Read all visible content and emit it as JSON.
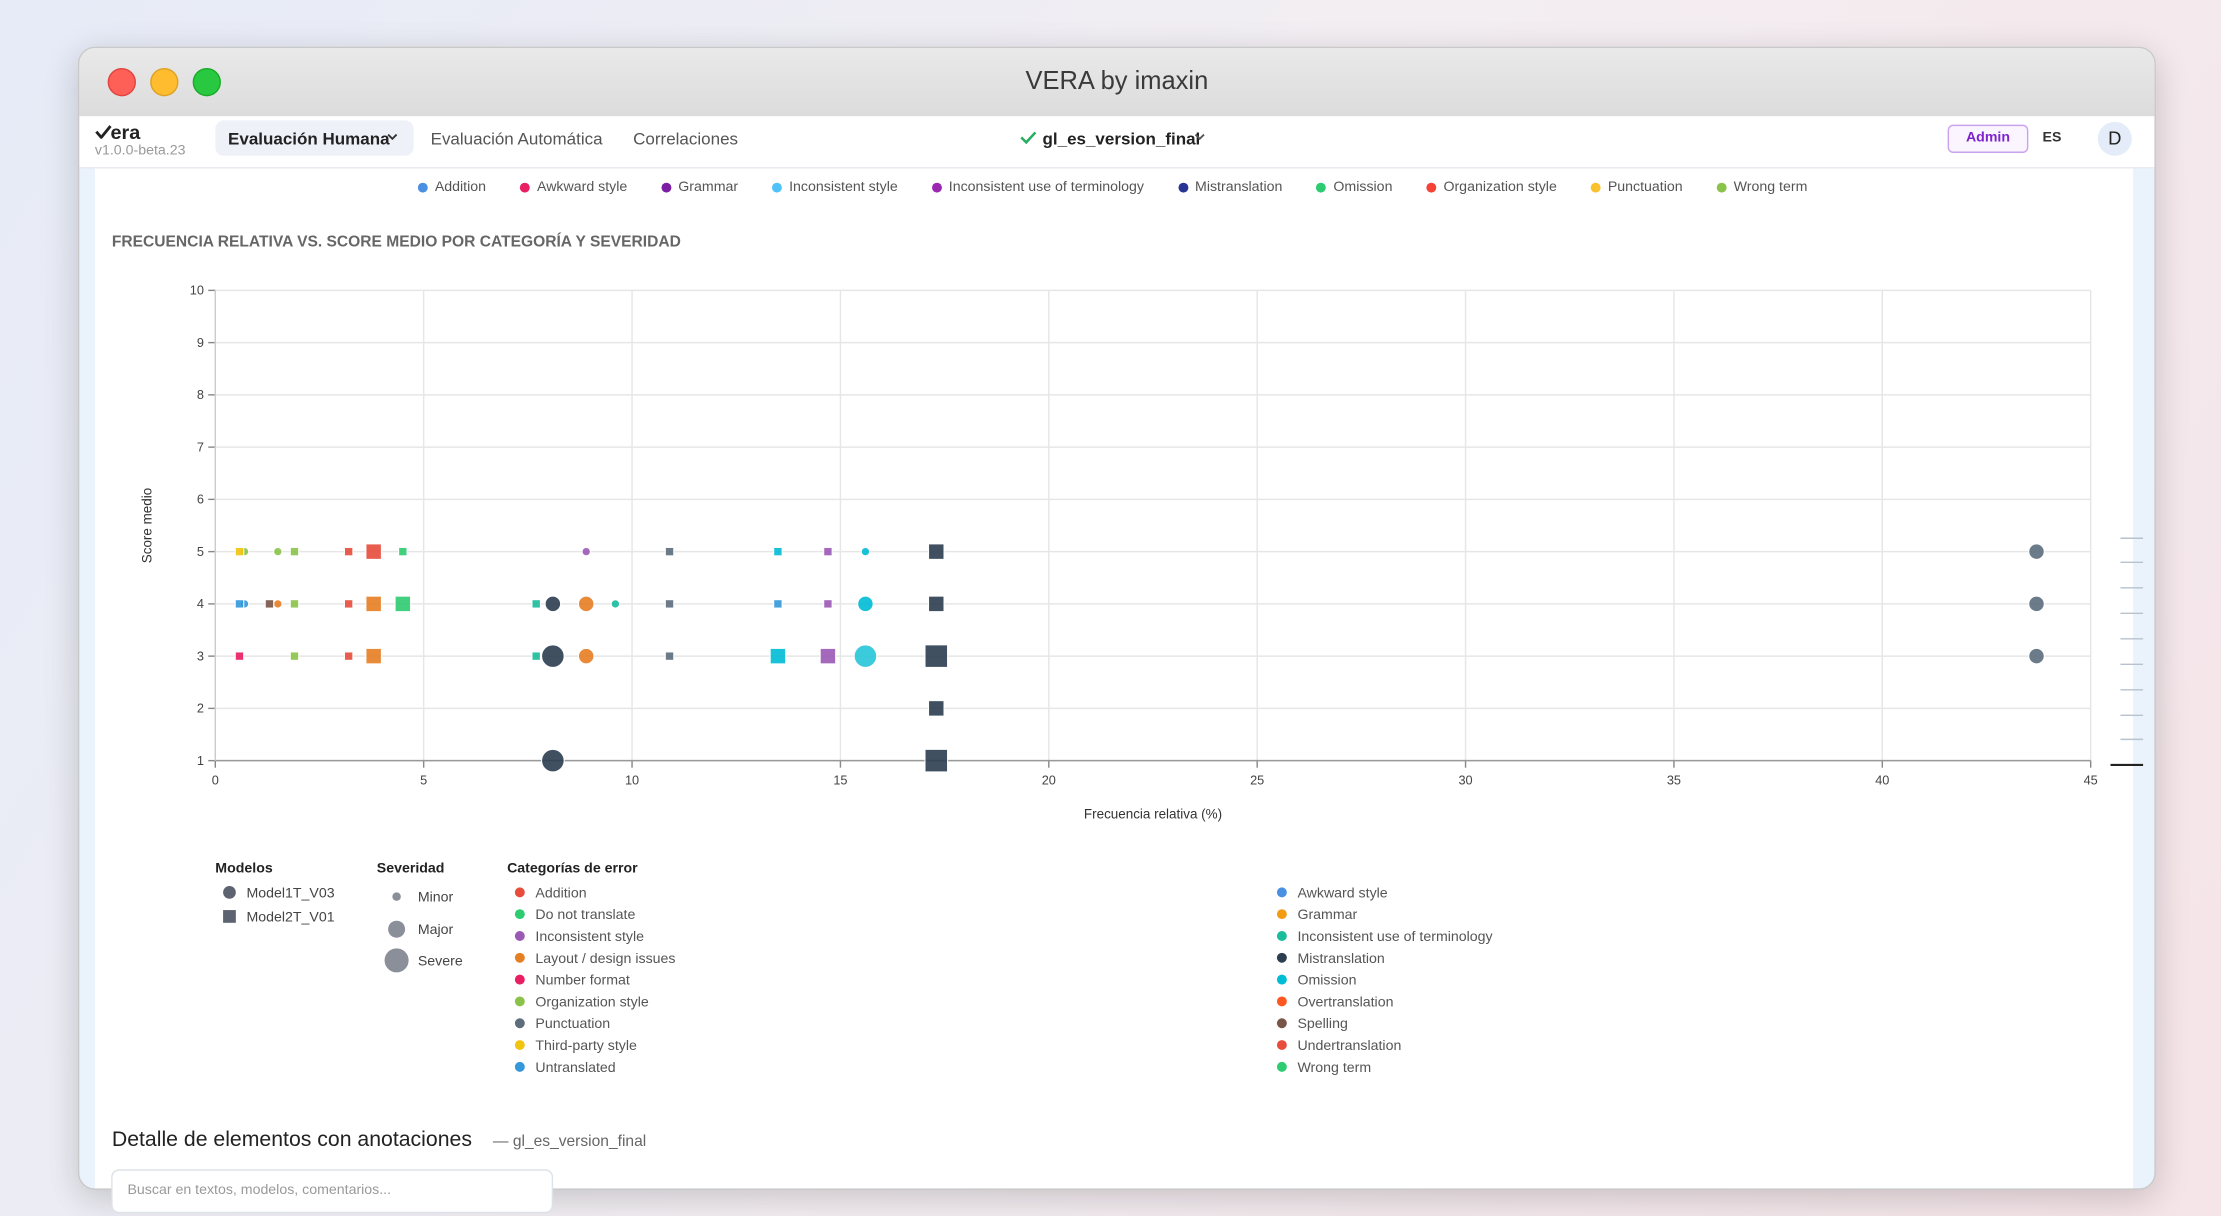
{
  "window": {
    "title": "VERA by imaxin"
  },
  "nav": {
    "logo": "era",
    "version": "v1.0.0-beta.23",
    "tabs": [
      "Evaluación Humana",
      "Evaluación Automática",
      "Correlaciones"
    ],
    "dataset": "gl_es_version_final",
    "role": "Admin",
    "lang": "ES",
    "avatar": "D"
  },
  "top_legend": [
    {
      "name": "Addition",
      "color": "#4a90e2"
    },
    {
      "name": "Awkward style",
      "color": "#e91e63"
    },
    {
      "name": "Grammar",
      "color": "#7b1fa2"
    },
    {
      "name": "Inconsistent style",
      "color": "#4fc3f7"
    },
    {
      "name": "Inconsistent use of terminology",
      "color": "#9c27b0"
    },
    {
      "name": "Mistranslation",
      "color": "#283593"
    },
    {
      "name": "Omission",
      "color": "#2ecc71"
    },
    {
      "name": "Organization style",
      "color": "#f44336"
    },
    {
      "name": "Punctuation",
      "color": "#fbc02d"
    },
    {
      "name": "Wrong term",
      "color": "#8bc34a"
    }
  ],
  "chart_data": {
    "type": "scatter",
    "title": "FRECUENCIA RELATIVA VS. SCORE MEDIO POR CATEGORÍA Y SEVERIDAD",
    "x_label": "Frecuencia relativa (%)",
    "y_label": "Score medio",
    "xlim": [
      0,
      45
    ],
    "ylim": [
      1,
      10
    ],
    "xticks": [
      0,
      5,
      10,
      15,
      20,
      25,
      30,
      35,
      40,
      45
    ],
    "yticks": [
      1,
      2,
      3,
      4,
      5,
      6,
      7,
      8,
      9,
      10
    ],
    "grid": true,
    "series": [
      {
        "name": "Model1T_V03",
        "marker": "circle",
        "x": [
          0.7,
          1.5,
          8.9,
          15.6,
          43.7,
          0.7,
          1.5,
          8.1,
          8.9,
          9.6,
          15.6,
          43.7,
          8.1,
          8.9,
          15.6,
          43.7,
          8.1
        ],
        "y": [
          5,
          5,
          5,
          5,
          5,
          4,
          4,
          4,
          4,
          4,
          4,
          4,
          3,
          3,
          3,
          3,
          1
        ],
        "severity": [
          "Minor",
          "Minor",
          "Minor",
          "Minor",
          "Major",
          "Minor",
          "Minor",
          "Major",
          "Major",
          "Minor",
          "Major",
          "Major",
          "Severe",
          "Major",
          "Severe",
          "Major",
          "Severe"
        ],
        "colors": [
          "#8bc34a",
          "#8bc34a",
          "#9b59b6",
          "#00bcd4",
          "#5d6d7e",
          "#3498db",
          "#e67e22",
          "#2c3e50",
          "#e67e22",
          "#1abc9c",
          "#00bcd4",
          "#5d6d7e",
          "#2c3e50",
          "#e67e22",
          "#26c6da",
          "#5d6d7e",
          "#2c3e50"
        ]
      },
      {
        "name": "Model2T_V01",
        "marker": "square",
        "x": [
          0.58,
          1.9,
          3.2,
          3.8,
          4.5,
          10.9,
          13.5,
          14.7,
          17.3,
          0.58,
          1.3,
          1.9,
          3.2,
          3.8,
          4.5,
          7.7,
          10.9,
          13.5,
          14.7,
          17.3,
          0.58,
          1.9,
          3.2,
          3.8,
          7.7,
          10.9,
          13.5,
          14.7,
          17.3,
          17.3,
          17.3
        ],
        "y": [
          5,
          5,
          5,
          5,
          5,
          5,
          5,
          5,
          5,
          4,
          4,
          4,
          4,
          4,
          4,
          4,
          4,
          4,
          4,
          4,
          3,
          3,
          3,
          3,
          3,
          3,
          3,
          3,
          3,
          2,
          1
        ],
        "severity": [
          "Minor",
          "Minor",
          "Minor",
          "Major",
          "Minor",
          "Minor",
          "Minor",
          "Minor",
          "Major",
          "Minor",
          "Minor",
          "Minor",
          "Minor",
          "Major",
          "Major",
          "Minor",
          "Minor",
          "Minor",
          "Minor",
          "Major",
          "Minor",
          "Minor",
          "Minor",
          "Major",
          "Minor",
          "Minor",
          "Major",
          "Major",
          "Severe",
          "Major",
          "Severe"
        ],
        "colors": [
          "#f1c40f",
          "#8bc34a",
          "#e74c3c",
          "#e74c3c",
          "#2ecc71",
          "#5d6d7e",
          "#00bcd4",
          "#9b59b6",
          "#2c3e50",
          "#3498db",
          "#795548",
          "#8bc34a",
          "#e74c3c",
          "#e67e22",
          "#2ecc71",
          "#1abc9c",
          "#5d6d7e",
          "#3498db",
          "#9b59b6",
          "#2c3e50",
          "#e91e63",
          "#8bc34a",
          "#e74c3c",
          "#e67e22",
          "#1abc9c",
          "#5d6d7e",
          "#00bcd4",
          "#9b59b6",
          "#2c3e50",
          "#2c3e50",
          "#2c3e50"
        ]
      }
    ]
  },
  "legend": {
    "models_title": "Modelos",
    "severity_title": "Severidad",
    "severities": [
      "Minor",
      "Major",
      "Severe"
    ],
    "categories_title": "Categorías de error",
    "categories": [
      {
        "name": "Addition",
        "color": "#e74c3c"
      },
      {
        "name": "Awkward style",
        "color": "#4a90e2"
      },
      {
        "name": "Do not translate",
        "color": "#2ecc71"
      },
      {
        "name": "Grammar",
        "color": "#f39c12"
      },
      {
        "name": "Inconsistent style",
        "color": "#9b59b6"
      },
      {
        "name": "Inconsistent use of terminology",
        "color": "#1abc9c"
      },
      {
        "name": "Layout / design issues",
        "color": "#e67e22"
      },
      {
        "name": "Mistranslation",
        "color": "#2c3e50"
      },
      {
        "name": "Number format",
        "color": "#e91e63"
      },
      {
        "name": "Omission",
        "color": "#00bcd4"
      },
      {
        "name": "Organization style",
        "color": "#8bc34a"
      },
      {
        "name": "Overtranslation",
        "color": "#ff5722"
      },
      {
        "name": "Punctuation",
        "color": "#5d6d7e"
      },
      {
        "name": "Spelling",
        "color": "#795548"
      },
      {
        "name": "Third-party style",
        "color": "#f1c40f"
      },
      {
        "name": "Undertranslation",
        "color": "#e74c3c"
      },
      {
        "name": "Untranslated",
        "color": "#3498db"
      },
      {
        "name": "Wrong term",
        "color": "#2ecc71"
      }
    ]
  },
  "detail": {
    "title": "Detalle de elementos con anotaciones",
    "dataset": "— gl_es_version_final",
    "search_placeholder": "Buscar en textos, modelos, comentarios..."
  }
}
